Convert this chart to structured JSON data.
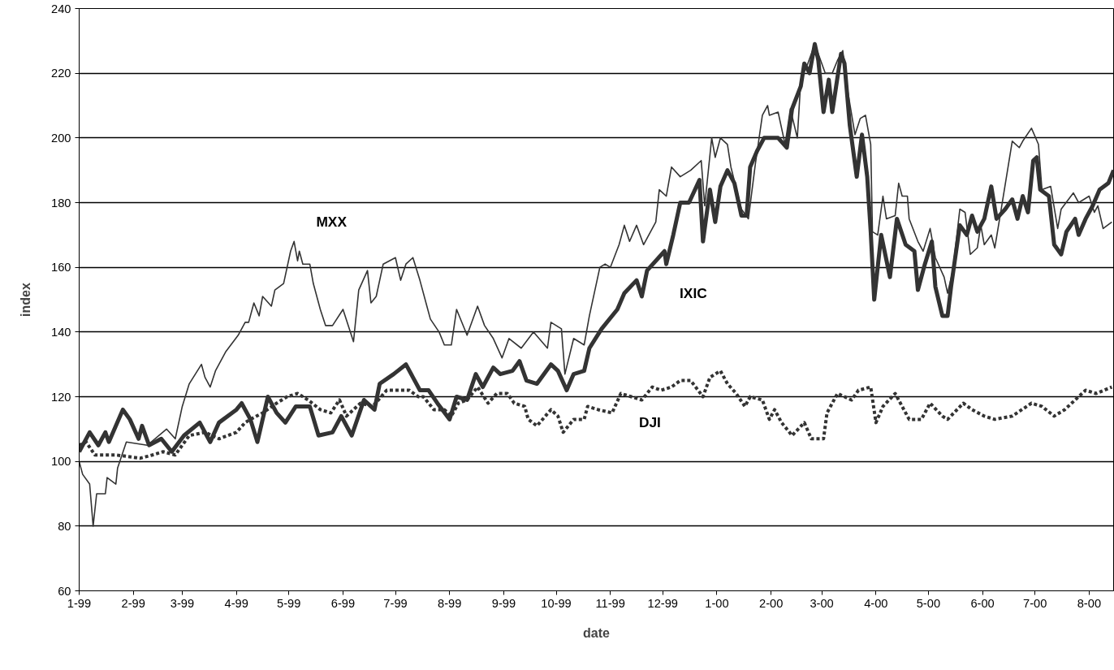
{
  "chart_data": {
    "type": "line",
    "xlabel": "date",
    "ylabel": "index",
    "xlim": [
      "1999-01-01",
      "2000-08-15"
    ],
    "ylim": [
      60,
      240
    ],
    "yticks": [
      60,
      80,
      100,
      120,
      140,
      160,
      180,
      200,
      220,
      240
    ],
    "xticks": [
      {
        "value": "1999-01-01",
        "label": "1-99"
      },
      {
        "value": "1999-02-01",
        "label": "2-99"
      },
      {
        "value": "1999-03-01",
        "label": "3-99"
      },
      {
        "value": "1999-04-01",
        "label": "4-99"
      },
      {
        "value": "1999-05-01",
        "label": "5-99"
      },
      {
        "value": "1999-06-01",
        "label": "6-99"
      },
      {
        "value": "1999-07-01",
        "label": "7-99"
      },
      {
        "value": "1999-08-01",
        "label": "8-99"
      },
      {
        "value": "1999-09-01",
        "label": "9-99"
      },
      {
        "value": "1999-10-01",
        "label": "10-99"
      },
      {
        "value": "1999-11-01",
        "label": "11-99"
      },
      {
        "value": "1999-12-01",
        "label": "12-99"
      },
      {
        "value": "2000-01-01",
        "label": "1-00"
      },
      {
        "value": "2000-02-01",
        "label": "2-00"
      },
      {
        "value": "2000-03-01",
        "label": "3-00"
      },
      {
        "value": "2000-04-01",
        "label": "4-00"
      },
      {
        "value": "2000-05-01",
        "label": "5-00"
      },
      {
        "value": "2000-06-01",
        "label": "6-00"
      },
      {
        "value": "2000-07-01",
        "label": "7-00"
      },
      {
        "value": "2000-08-01",
        "label": "8-00"
      }
    ],
    "grid": "y",
    "marker": "none",
    "series": [
      {
        "name": "IXIC",
        "color": "#333333",
        "line_style": "solid",
        "x": [
          "1999-01-01",
          "1999-01-07",
          "1999-01-12",
          "1999-01-16",
          "1999-01-18",
          "1999-01-26",
          "1999-01-30",
          "1999-02-04",
          "1999-02-06",
          "1999-02-10",
          "1999-02-17",
          "1999-02-23",
          "1999-03-02",
          "1999-03-11",
          "1999-03-17",
          "1999-03-22",
          "1999-04-01",
          "1999-04-04",
          "1999-04-09",
          "1999-04-13",
          "1999-04-19",
          "1999-04-24",
          "1999-04-29",
          "1999-05-05",
          "1999-05-13",
          "1999-05-18",
          "1999-05-26",
          "1999-05-31",
          "1999-06-06",
          "1999-06-13",
          "1999-06-19",
          "1999-06-22",
          "1999-06-30",
          "1999-07-07",
          "1999-07-11",
          "1999-07-15",
          "1999-07-20",
          "1999-07-25",
          "1999-08-01",
          "1999-08-05",
          "1999-08-11",
          "1999-08-16",
          "1999-08-20",
          "1999-08-26",
          "1999-08-30",
          "1999-09-06",
          "1999-09-10",
          "1999-09-14",
          "1999-09-20",
          "1999-09-28",
          "1999-10-02",
          "1999-10-07",
          "1999-10-11",
          "1999-10-17",
          "1999-10-20",
          "1999-10-27",
          "1999-11-05",
          "1999-11-09",
          "1999-11-16",
          "1999-11-19",
          "1999-11-22",
          "1999-12-02",
          "1999-12-03",
          "1999-12-07",
          "1999-12-11",
          "1999-12-16",
          "1999-12-22",
          "1999-12-24",
          "1999-12-28",
          "1999-12-31",
          "2000-01-03",
          "2000-01-07",
          "2000-01-11",
          "2000-01-15",
          "2000-01-18",
          "2000-01-20",
          "2000-01-24",
          "2000-01-28",
          "2000-02-05",
          "2000-02-10",
          "2000-02-13",
          "2000-02-18",
          "2000-02-20",
          "2000-02-23",
          "2000-02-26",
          "2000-02-28",
          "2000-03-02",
          "2000-03-05",
          "2000-03-07",
          "2000-03-12",
          "2000-03-14",
          "2000-03-17",
          "2000-03-21",
          "2000-03-24",
          "2000-03-27",
          "2000-03-29",
          "2000-03-31",
          "2000-04-04",
          "2000-04-09",
          "2000-04-13",
          "2000-04-18",
          "2000-04-23",
          "2000-04-25",
          "2000-04-29",
          "2000-05-03",
          "2000-05-05",
          "2000-05-09",
          "2000-05-12",
          "2000-05-14",
          "2000-05-19",
          "2000-05-23",
          "2000-05-26",
          "2000-05-29",
          "2000-06-02",
          "2000-06-06",
          "2000-06-09",
          "2000-06-14",
          "2000-06-18",
          "2000-06-21",
          "2000-06-24",
          "2000-06-27",
          "2000-06-30",
          "2000-07-02",
          "2000-07-04",
          "2000-07-09",
          "2000-07-12",
          "2000-07-16",
          "2000-07-19",
          "2000-07-24",
          "2000-07-26",
          "2000-07-30",
          "2000-08-03",
          "2000-08-07",
          "2000-08-12",
          "2000-08-15"
        ],
        "values": [
          103,
          109,
          105,
          109,
          106,
          116,
          113,
          107,
          111,
          105,
          107,
          103,
          108,
          112,
          106,
          112,
          116,
          118,
          113,
          106,
          120,
          115,
          112,
          117,
          117,
          108,
          109,
          114,
          108,
          119,
          116,
          124,
          127,
          130,
          126,
          122,
          122,
          118,
          113,
          120,
          119,
          127,
          123,
          129,
          127,
          128,
          131,
          125,
          124,
          130,
          128,
          122,
          127,
          128,
          135,
          141,
          147,
          152,
          156,
          151,
          159,
          165,
          161,
          170,
          180,
          180,
          187,
          168,
          184,
          174,
          185,
          190,
          186,
          176,
          176,
          191,
          196,
          200,
          200,
          197,
          209,
          216,
          223,
          220,
          229,
          224,
          208,
          218,
          208,
          226,
          223,
          204,
          188,
          201,
          188,
          171,
          150,
          170,
          157,
          175,
          167,
          165,
          153,
          161,
          168,
          154,
          145,
          145,
          154,
          173,
          170,
          176,
          171,
          175,
          185,
          175,
          178,
          181,
          175,
          182,
          177,
          193,
          194,
          184,
          182,
          167,
          164,
          171,
          175,
          170,
          175,
          179,
          184,
          186,
          190
        ]
      },
      {
        "name": "MXX",
        "color": "#333333",
        "line_style": "solid",
        "x": [
          "1999-01-01",
          "1999-01-03",
          "1999-01-07",
          "1999-01-09",
          "1999-01-11",
          "1999-01-16",
          "1999-01-17",
          "1999-01-22",
          "1999-01-23",
          "1999-01-28",
          "1999-02-09",
          "1999-02-20",
          "1999-02-25",
          "1999-03-01",
          "1999-03-05",
          "1999-03-12",
          "1999-03-14",
          "1999-03-17",
          "1999-03-20",
          "1999-03-26",
          "1999-04-02",
          "1999-04-06",
          "1999-04-08",
          "1999-04-11",
          "1999-04-14",
          "1999-04-16",
          "1999-04-21",
          "1999-04-23",
          "1999-04-28",
          "1999-05-02",
          "1999-05-04",
          "1999-05-06",
          "1999-05-07",
          "1999-05-09",
          "1999-05-13",
          "1999-05-15",
          "1999-05-19",
          "1999-05-22",
          "1999-05-26",
          "1999-06-01",
          "1999-06-07",
          "1999-06-10",
          "1999-06-15",
          "1999-06-17",
          "1999-06-20",
          "1999-06-24",
          "1999-07-01",
          "1999-07-04",
          "1999-07-07",
          "1999-07-11",
          "1999-07-15",
          "1999-07-19",
          "1999-07-21",
          "1999-07-26",
          "1999-07-29",
          "1999-08-02",
          "1999-08-05",
          "1999-08-11",
          "1999-08-17",
          "1999-08-21",
          "1999-08-26",
          "1999-08-31",
          "1999-09-04",
          "1999-09-11",
          "1999-09-18",
          "1999-09-26",
          "1999-09-28",
          "1999-10-04",
          "1999-10-06",
          "1999-10-11",
          "1999-10-17",
          "1999-10-20",
          "1999-10-26",
          "1999-10-29",
          "1999-11-01",
          "1999-11-06",
          "1999-11-09",
          "1999-11-12",
          "1999-11-16",
          "1999-11-20",
          "1999-11-27",
          "1999-11-29",
          "1999-12-03",
          "1999-12-06",
          "1999-12-11",
          "1999-12-17",
          "1999-12-23",
          "1999-12-25",
          "1999-12-29",
          "1999-12-31",
          "2000-01-03",
          "2000-01-07",
          "2000-01-09",
          "2000-01-15",
          "2000-01-19",
          "2000-01-23",
          "2000-01-27",
          "2000-01-30",
          "2000-01-31",
          "2000-02-05",
          "2000-02-09",
          "2000-02-12",
          "2000-02-16",
          "2000-02-18",
          "2000-02-22",
          "2000-02-26",
          "2000-03-03",
          "2000-03-07",
          "2000-03-10",
          "2000-03-13",
          "2000-03-16",
          "2000-03-20",
          "2000-03-23",
          "2000-03-26",
          "2000-03-29",
          "2000-03-30",
          "2000-04-02",
          "2000-04-05",
          "2000-04-07",
          "2000-04-12",
          "2000-04-14",
          "2000-04-16",
          "2000-04-19",
          "2000-04-20",
          "2000-04-25",
          "2000-04-28",
          "2000-05-02",
          "2000-05-05",
          "2000-05-10",
          "2000-05-12",
          "2000-05-15",
          "2000-05-19",
          "2000-05-22",
          "2000-05-25",
          "2000-05-29",
          "2000-05-31",
          "2000-06-02",
          "2000-06-06",
          "2000-06-08",
          "2000-06-12",
          "2000-06-18",
          "2000-06-22",
          "2000-06-24",
          "2000-06-29",
          "2000-07-03",
          "2000-07-05",
          "2000-07-10",
          "2000-07-14",
          "2000-07-16",
          "2000-07-23",
          "2000-07-26",
          "2000-08-01",
          "2000-08-04",
          "2000-08-06",
          "2000-08-09",
          "2000-08-14"
        ],
        "values": [
          100,
          96,
          93,
          80,
          90,
          90,
          95,
          93,
          98,
          106,
          105,
          110,
          107,
          117,
          124,
          130,
          126,
          123,
          128,
          134,
          139,
          143,
          143,
          149,
          145,
          151,
          148,
          153,
          155,
          165,
          168,
          162,
          165,
          161,
          161,
          155,
          147,
          142,
          142,
          147,
          137,
          153,
          159,
          149,
          151,
          161,
          163,
          156,
          161,
          163,
          156,
          148,
          144,
          140,
          136,
          136,
          147,
          139,
          148,
          142,
          138,
          132,
          138,
          135,
          140,
          135,
          143,
          141,
          127,
          138,
          136,
          145,
          160,
          161,
          160,
          167,
          173,
          168,
          173,
          167,
          174,
          184,
          182,
          191,
          188,
          190,
          193,
          179,
          200,
          194,
          200,
          198,
          191,
          178,
          175,
          192,
          207,
          210,
          207,
          208,
          198,
          209,
          200,
          218,
          223,
          229,
          220,
          220,
          224,
          227,
          214,
          201,
          206,
          207,
          198,
          171,
          170,
          182,
          175,
          176,
          186,
          182,
          182,
          175,
          168,
          165,
          172,
          163,
          157,
          152,
          159,
          178,
          177,
          164,
          166,
          173,
          167,
          170,
          166,
          179,
          199,
          197,
          199,
          203,
          198,
          184,
          185,
          172,
          178,
          183,
          180,
          182,
          177,
          179,
          172,
          174
        ]
      },
      {
        "name": "DJI",
        "color": "#333333",
        "line_style": "dotted",
        "x": [
          "1999-01-01",
          "1999-01-05",
          "1999-01-10",
          "1999-01-22",
          "1999-02-05",
          "1999-02-12",
          "1999-02-18",
          "1999-02-25",
          "1999-03-05",
          "1999-03-14",
          "1999-03-22",
          "1999-04-01",
          "1999-04-06",
          "1999-04-09",
          "1999-04-16",
          "1999-04-24",
          "1999-04-30",
          "1999-05-06",
          "1999-05-12",
          "1999-05-19",
          "1999-05-25",
          "1999-05-30",
          "1999-06-03",
          "1999-06-11",
          "1999-06-18",
          "1999-06-26",
          "1999-07-04",
          "1999-07-09",
          "1999-07-14",
          "1999-07-17",
          "1999-07-23",
          "1999-07-29",
          "1999-08-02",
          "1999-08-06",
          "1999-08-11",
          "1999-08-17",
          "1999-08-23",
          "1999-08-28",
          "1999-09-03",
          "1999-09-07",
          "1999-09-13",
          "1999-09-15",
          "1999-09-20",
          "1999-09-28",
          "1999-10-02",
          "1999-10-05",
          "1999-10-11",
          "1999-10-17",
          "1999-10-19",
          "1999-10-25",
          "1999-11-02",
          "1999-11-07",
          "1999-11-13",
          "1999-11-19",
          "1999-11-25",
          "1999-11-30",
          "1999-12-06",
          "1999-12-11",
          "1999-12-17",
          "1999-12-24",
          "1999-12-28",
          "2000-01-03",
          "2000-01-07",
          "2000-01-12",
          "2000-01-17",
          "2000-01-20",
          "2000-01-27",
          "2000-01-31",
          "2000-02-03",
          "2000-02-07",
          "2000-02-13",
          "2000-02-20",
          "2000-02-24",
          "2000-03-02",
          "2000-03-04",
          "2000-03-10",
          "2000-03-18",
          "2000-03-22",
          "2000-03-29",
          "2000-04-01",
          "2000-04-05",
          "2000-04-12",
          "2000-04-16",
          "2000-04-20",
          "2000-04-27",
          "2000-05-02",
          "2000-05-09",
          "2000-05-12",
          "2000-05-21",
          "2000-05-26",
          "2000-06-02",
          "2000-06-08",
          "2000-06-18",
          "2000-06-29",
          "2000-07-05",
          "2000-07-12",
          "2000-07-18",
          "2000-07-24",
          "2000-07-30",
          "2000-08-05",
          "2000-08-14"
        ],
        "values": [
          105,
          106,
          102,
          102,
          101,
          102,
          103,
          102,
          108,
          109,
          107,
          109,
          112,
          113,
          115,
          118,
          120,
          121,
          119,
          116,
          115,
          119,
          114,
          118,
          117,
          122,
          122,
          122,
          120,
          120,
          116,
          116,
          114,
          118,
          119,
          123,
          118,
          121,
          121,
          118,
          117,
          113,
          111,
          116,
          114,
          109,
          113,
          113,
          117,
          116,
          115,
          121,
          120,
          119,
          123,
          122,
          123,
          125,
          125,
          120,
          126,
          128,
          124,
          121,
          117,
          120,
          119,
          113,
          116,
          112,
          108,
          112,
          107,
          107,
          115,
          121,
          119,
          122,
          123,
          112,
          117,
          121,
          117,
          113,
          113,
          118,
          114,
          113,
          118,
          116,
          114,
          113,
          114,
          118,
          117,
          114,
          116,
          119,
          122,
          121,
          123
        ]
      }
    ]
  }
}
